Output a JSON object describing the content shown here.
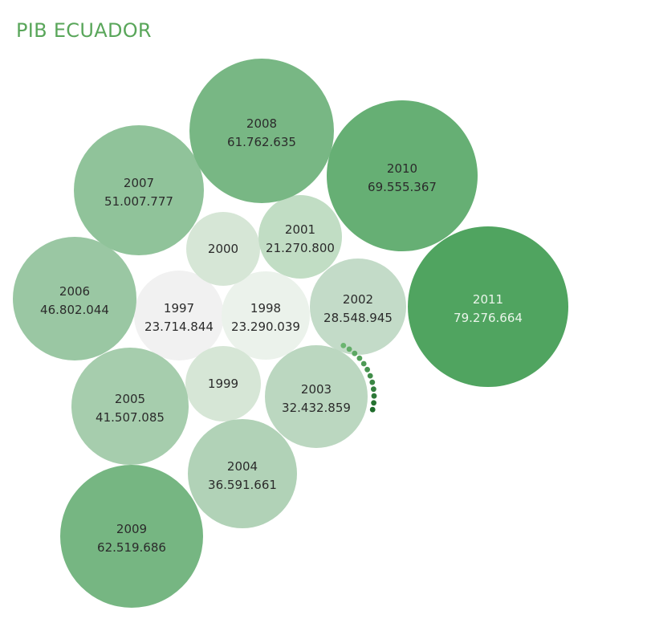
{
  "chart_data": {
    "type": "bubble",
    "title": "PIB ECUADOR",
    "bubbles": [
      {
        "year": "1997",
        "label": "23.714.844",
        "value": 23714844
      },
      {
        "year": "1998",
        "label": "23.290.039",
        "value": 23290039
      },
      {
        "year": "1999",
        "label": "",
        "value": null
      },
      {
        "year": "2000",
        "label": "",
        "value": null
      },
      {
        "year": "2001",
        "label": "21.270.800",
        "value": 21270800
      },
      {
        "year": "2002",
        "label": "28.548.945",
        "value": 28548945
      },
      {
        "year": "2003",
        "label": "32.432.859",
        "value": 32432859
      },
      {
        "year": "2004",
        "label": "36.591.661",
        "value": 36591661
      },
      {
        "year": "2005",
        "label": "41.507.085",
        "value": 41507085
      },
      {
        "year": "2006",
        "label": "46.802.044",
        "value": 46802044
      },
      {
        "year": "2007",
        "label": "51.007.777",
        "value": 51007777
      },
      {
        "year": "2008",
        "label": "61.762.635",
        "value": 61762635
      },
      {
        "year": "2009",
        "label": "62.519.686",
        "value": 62519686
      },
      {
        "year": "2010",
        "label": "69.555.367",
        "value": 69555367
      },
      {
        "year": "2011",
        "label": "79.276.664",
        "value": 79276664
      }
    ],
    "colors": {
      "low": "#f1f1f1",
      "high": "#50a460",
      "title": "#59a65a",
      "dots_light": "#6ab56f",
      "dots_dark": "#1e6b2b"
    }
  }
}
